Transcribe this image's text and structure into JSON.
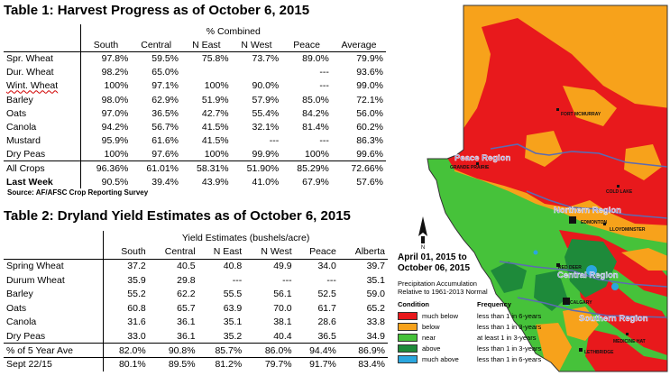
{
  "table1": {
    "title": "Table 1: Harvest Progress as of October 6, 2015",
    "group_header": "% Combined",
    "columns": [
      "South",
      "Central",
      "N East",
      "N West",
      "Peace",
      "Average"
    ],
    "rows": [
      {
        "label": "Spr. Wheat",
        "values": [
          "97.8%",
          "59.5%",
          "75.8%",
          "73.7%",
          "89.0%",
          "79.9%"
        ]
      },
      {
        "label": "Dur. Wheat",
        "values": [
          "98.2%",
          "65.0%",
          "",
          "",
          "---",
          "93.6%"
        ]
      },
      {
        "label": "Wint. Wheat",
        "values": [
          "100%",
          "97.1%",
          "100%",
          "90.0%",
          "---",
          "99.0%"
        ]
      },
      {
        "label": "Barley",
        "values": [
          "98.0%",
          "62.9%",
          "51.9%",
          "57.9%",
          "85.0%",
          "72.1%"
        ]
      },
      {
        "label": "Oats",
        "values": [
          "97.0%",
          "36.5%",
          "42.7%",
          "55.4%",
          "84.2%",
          "56.0%"
        ]
      },
      {
        "label": "Canola",
        "values": [
          "94.2%",
          "56.7%",
          "41.5%",
          "32.1%",
          "81.4%",
          "60.2%"
        ]
      },
      {
        "label": "Mustard",
        "values": [
          "95.9%",
          "61.6%",
          "41.5%",
          "---",
          "---",
          "86.3%"
        ]
      },
      {
        "label": "Dry Peas",
        "values": [
          "100%",
          "97.6%",
          "100%",
          "99.9%",
          "100%",
          "99.6%"
        ]
      }
    ],
    "all_crops": {
      "label": "All Crops",
      "values": [
        "96.36%",
        "61.01%",
        "58.31%",
        "51.90%",
        "85.29%",
        "72.66%"
      ]
    },
    "last_week": {
      "label": "Last Week",
      "values": [
        "90.5%",
        "39.4%",
        "43.9%",
        "41.0%",
        "67.9%",
        "57.6%"
      ]
    },
    "source": "Source: AF/AFSC Crop Reporting Survey"
  },
  "table2": {
    "title": "Table 2: Dryland Yield Estimates as of October 6, 2015",
    "group_header": "Yield Estimates (bushels/acre)",
    "columns": [
      "South",
      "Central",
      "N East",
      "N West",
      "Peace",
      "Alberta"
    ],
    "rows": [
      {
        "label": "Spring Wheat",
        "values": [
          "37.2",
          "40.5",
          "40.8",
          "49.9",
          "34.0",
          "39.7"
        ]
      },
      {
        "label": "Durum Wheat",
        "values": [
          "35.9",
          "29.8",
          "---",
          "---",
          "---",
          "35.1"
        ]
      },
      {
        "label": "Barley",
        "values": [
          "55.2",
          "62.2",
          "55.5",
          "56.1",
          "52.5",
          "59.0"
        ]
      },
      {
        "label": "Oats",
        "values": [
          "60.8",
          "65.7",
          "63.9",
          "70.0",
          "61.7",
          "65.2"
        ]
      },
      {
        "label": "Canola",
        "values": [
          "31.6",
          "36.1",
          "35.1",
          "38.1",
          "28.6",
          "33.8"
        ]
      },
      {
        "label": "Dry Peas",
        "values": [
          "33.0",
          "36.1",
          "35.2",
          "40.4",
          "36.5",
          "34.9"
        ]
      }
    ],
    "pct_5yr": {
      "label": "% of 5 Year Ave",
      "values": [
        "82.0%",
        "90.8%",
        "85.7%",
        "86.0%",
        "94.4%",
        "86.9%"
      ]
    },
    "sept": {
      "label": "Sept 22/15",
      "values": [
        "80.1%",
        "89.5%",
        "81.2%",
        "79.7%",
        "91.7%",
        "83.4%"
      ]
    }
  },
  "map": {
    "title_line1": "April 01, 2015 to",
    "title_line2": "October 06, 2015",
    "subtitle_line1": "Precipitation Accumulation",
    "subtitle_line2": "Relative to 1961-2013 Normal",
    "col_condition": "Condition",
    "col_frequency": "Frequency",
    "legend": [
      {
        "label": "much below",
        "frequency": "less than 1 in 6-years",
        "color": "#e8191c"
      },
      {
        "label": "below",
        "frequency": "less than 1 in 3-years",
        "color": "#f7a21b"
      },
      {
        "label": "near",
        "frequency": "at least 1 in 3-years",
        "color": "#46c23a"
      },
      {
        "label": "above",
        "frequency": "less than 1 in 3-years",
        "color": "#1e8a3a"
      },
      {
        "label": "much above",
        "frequency": "less than 1 in 6-years",
        "color": "#2aa6de"
      }
    ],
    "regions": {
      "peace": "Peace Region",
      "northern": "Northern Region",
      "central": "Central Region",
      "southern": "Southern Region"
    },
    "cities": {
      "fort_mcmurray": "FORT MCMURRAY",
      "grande_prairie": "GRANDE PRAIRIE",
      "cold_lake": "COLD LAKE",
      "edmonton": "EDMONTON",
      "lloydminster": "LLOYDMINSTER",
      "red_deer": "RED DEER",
      "calgary": "CALGARY",
      "medicine_hat": "MEDICINE HAT",
      "lethbridge": "LETHBRIDGE"
    },
    "north_arrow_label": "N"
  }
}
